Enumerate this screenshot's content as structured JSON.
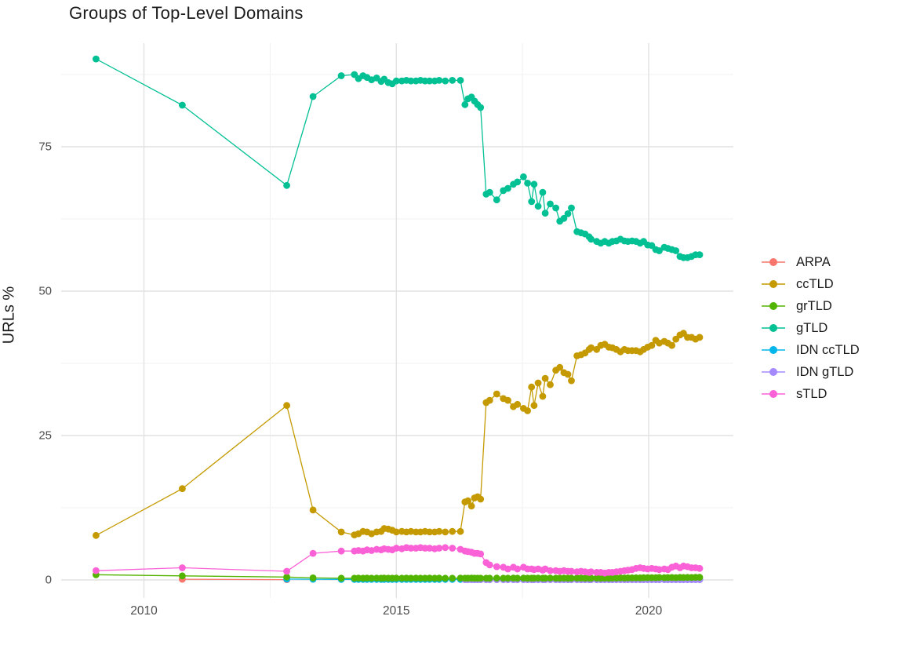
{
  "title": "Groups of Top-Level Domains",
  "chart_data": {
    "type": "line",
    "title": "Groups of Top-Level Domains",
    "xlabel": "",
    "ylabel": "URLs %",
    "x_ticks": [
      2010,
      2015,
      2020
    ],
    "x_minor": [
      2012.5,
      2017.5
    ],
    "y_ticks": [
      0,
      25,
      50,
      75
    ],
    "y_minor": [
      12.5,
      37.5,
      62.5,
      87.5
    ],
    "xlim": [
      2008.36,
      2021.68
    ],
    "ylim": [
      -3,
      93
    ],
    "grid": true,
    "legend_position": "right",
    "legend": [
      {
        "label": "ARPA",
        "color": "#F8766D"
      },
      {
        "label": "ccTLD",
        "color": "#C49A00"
      },
      {
        "label": "grTLD",
        "color": "#53B400"
      },
      {
        "label": "gTLD",
        "color": "#00C094"
      },
      {
        "label": "IDN ccTLD",
        "color": "#00B6EB"
      },
      {
        "label": "IDN gTLD",
        "color": "#A58AFF"
      },
      {
        "label": "sTLD",
        "color": "#FB61D7"
      }
    ],
    "series": [
      {
        "name": "ARPA",
        "color": "#F8766D",
        "x": [
          2010.76,
          2012.83
        ],
        "y": [
          0.12,
          0.06
        ]
      },
      {
        "name": "IDN ccTLD",
        "color": "#00B6EB",
        "x": [
          2012.83,
          2013.35,
          2013.91,
          2014.17,
          2014.25,
          2014.34,
          2014.42,
          2014.51,
          2014.61,
          2014.7,
          2014.76,
          2014.84,
          2014.92,
          2015.0,
          2015.11,
          2015.2,
          2015.29,
          2015.39,
          2015.48,
          2015.57,
          2015.66,
          2015.76,
          2015.85,
          2015.97,
          2016.11,
          2016.27,
          2016.36,
          2016.42,
          2016.49,
          2016.55,
          2016.61,
          2016.67,
          2016.78,
          2016.85,
          2016.99,
          2017.12,
          2017.21,
          2017.32,
          2017.4,
          2017.52,
          2017.6,
          2017.68,
          2017.73,
          2017.81,
          2017.9,
          2017.95,
          2018.05,
          2018.16,
          2018.24,
          2018.32,
          2018.4,
          2018.47,
          2018.58,
          2018.66,
          2018.74,
          2018.82,
          2018.86,
          2018.97,
          2019.05,
          2019.13,
          2019.21,
          2019.28,
          2019.36,
          2019.44,
          2019.52,
          2019.59,
          2019.67,
          2019.75,
          2019.83,
          2019.9,
          2019.98,
          2020.06,
          2020.14,
          2020.21,
          2020.31,
          2020.38,
          2020.46,
          2020.54,
          2020.62,
          2020.69,
          2020.77,
          2020.85,
          2020.93,
          2021.01
        ],
        "y": [
          0.15,
          0.12,
          0.1,
          0.1,
          0.1,
          0.1,
          0.1,
          0.1,
          0.1,
          0.1,
          0.1,
          0.1,
          0.1,
          0.1,
          0.1,
          0.1,
          0.1,
          0.1,
          0.1,
          0.1,
          0.1,
          0.1,
          0.1,
          0.1,
          0.1,
          0.1,
          0.1,
          0.1,
          0.1,
          0.1,
          0.1,
          0.1,
          0.1,
          0.1,
          0.1,
          0.1,
          0.1,
          0.1,
          0.1,
          0.1,
          0.1,
          0.1,
          0.1,
          0.1,
          0.1,
          0.1,
          0.1,
          0.1,
          0.1,
          0.1,
          0.1,
          0.1,
          0.1,
          0.1,
          0.1,
          0.1,
          0.1,
          0.1,
          0.1,
          0.1,
          0.1,
          0.1,
          0.1,
          0.1,
          0.1,
          0.1,
          0.1,
          0.1,
          0.1,
          0.1,
          0.1,
          0.1,
          0.1,
          0.1,
          0.1,
          0.1,
          0.1,
          0.1,
          0.1,
          0.1,
          0.1,
          0.1,
          0.1,
          0.1
        ]
      },
      {
        "name": "IDN gTLD",
        "color": "#A58AFF",
        "x": [
          2016.36,
          2016.42,
          2016.49,
          2016.55,
          2016.61,
          2016.67,
          2016.78,
          2016.85,
          2016.99,
          2017.12,
          2017.21,
          2017.32,
          2017.4,
          2017.52,
          2017.6,
          2017.68,
          2017.73,
          2017.81,
          2017.9,
          2017.95,
          2018.05,
          2018.16,
          2018.24,
          2018.32,
          2018.4,
          2018.47,
          2018.58,
          2018.66,
          2018.74,
          2018.82,
          2018.86,
          2018.97,
          2019.05,
          2019.13,
          2019.21,
          2019.28,
          2019.36,
          2019.44,
          2019.52,
          2019.59,
          2019.67,
          2019.75,
          2019.83,
          2019.9,
          2019.98,
          2020.06,
          2020.14,
          2020.21,
          2020.31,
          2020.38,
          2020.46,
          2020.54,
          2020.62,
          2020.69,
          2020.77,
          2020.85,
          2020.93,
          2021.01
        ],
        "y": [
          0.05,
          0.05,
          0.05,
          0.05,
          0.05,
          0.05,
          0.04,
          0.04,
          0.04,
          0.04,
          0.04,
          0.04,
          0.04,
          0.04,
          0.04,
          0.04,
          0.04,
          0.04,
          0.04,
          0.04,
          0.04,
          0.04,
          0.04,
          0.04,
          0.04,
          0.04,
          0.04,
          0.04,
          0.04,
          0.04,
          0.04,
          0.04,
          0.04,
          0.04,
          0.04,
          0.04,
          0.04,
          0.04,
          0.04,
          0.04,
          0.04,
          0.04,
          0.04,
          0.04,
          0.04,
          0.04,
          0.04,
          0.04,
          0.04,
          0.04,
          0.04,
          0.04,
          0.04,
          0.04,
          0.04,
          0.04,
          0.04,
          0.04
        ]
      },
      {
        "name": "ccTLD",
        "color": "#C49A00",
        "x": [
          2009.05,
          2010.76,
          2012.83,
          2013.35,
          2013.91,
          2014.17,
          2014.25,
          2014.34,
          2014.42,
          2014.51,
          2014.61,
          2014.7,
          2014.76,
          2014.84,
          2014.92,
          2015.0,
          2015.11,
          2015.2,
          2015.29,
          2015.39,
          2015.48,
          2015.57,
          2015.66,
          2015.76,
          2015.85,
          2015.97,
          2016.11,
          2016.27,
          2016.36,
          2016.42,
          2016.49,
          2016.55,
          2016.61,
          2016.67,
          2016.78,
          2016.85,
          2016.99,
          2017.12,
          2017.21,
          2017.32,
          2017.4,
          2017.52,
          2017.6,
          2017.68,
          2017.73,
          2017.81,
          2017.9,
          2017.95,
          2018.05,
          2018.16,
          2018.24,
          2018.32,
          2018.4,
          2018.47,
          2018.58,
          2018.66,
          2018.74,
          2018.82,
          2018.86,
          2018.97,
          2019.05,
          2019.13,
          2019.21,
          2019.28,
          2019.36,
          2019.44,
          2019.52,
          2019.59,
          2019.67,
          2019.75,
          2019.83,
          2019.9,
          2019.98,
          2020.06,
          2020.14,
          2020.21,
          2020.31,
          2020.38,
          2020.46,
          2020.54,
          2020.62,
          2020.69,
          2020.77,
          2020.85,
          2020.93,
          2021.01
        ],
        "y": [
          7.7,
          15.8,
          30.2,
          12.1,
          8.3,
          7.8,
          8.0,
          8.4,
          8.3,
          8.0,
          8.3,
          8.4,
          8.9,
          8.8,
          8.6,
          8.3,
          8.4,
          8.3,
          8.4,
          8.3,
          8.3,
          8.4,
          8.3,
          8.3,
          8.4,
          8.3,
          8.4,
          8.4,
          13.5,
          13.7,
          12.8,
          14.2,
          14.4,
          14.0,
          30.7,
          31.1,
          32.2,
          31.4,
          31.1,
          30.0,
          30.4,
          29.7,
          29.3,
          33.4,
          30.2,
          34.1,
          31.8,
          34.9,
          33.8,
          36.3,
          36.8,
          35.9,
          35.6,
          34.5,
          38.8,
          39.0,
          39.3,
          39.9,
          40.2,
          39.9,
          40.6,
          40.8,
          40.3,
          40.2,
          39.9,
          39.5,
          39.9,
          39.7,
          39.7,
          39.7,
          39.5,
          39.9,
          40.3,
          40.6,
          41.5,
          41.0,
          41.3,
          41.0,
          40.6,
          41.7,
          42.4,
          42.7,
          42.0,
          42.0,
          41.7,
          42.0
        ]
      },
      {
        "name": "grTLD",
        "color": "#53B400",
        "x": [
          2009.05,
          2010.76,
          2012.83,
          2013.35,
          2013.91,
          2014.17,
          2014.25,
          2014.34,
          2014.42,
          2014.51,
          2014.61,
          2014.7,
          2014.76,
          2014.84,
          2014.92,
          2015.0,
          2015.11,
          2015.2,
          2015.29,
          2015.39,
          2015.48,
          2015.57,
          2015.66,
          2015.76,
          2015.85,
          2015.97,
          2016.11,
          2016.27,
          2016.36,
          2016.42,
          2016.49,
          2016.55,
          2016.61,
          2016.67,
          2016.78,
          2016.85,
          2016.99,
          2017.12,
          2017.21,
          2017.32,
          2017.4,
          2017.52,
          2017.6,
          2017.68,
          2017.73,
          2017.81,
          2017.9,
          2017.95,
          2018.05,
          2018.16,
          2018.24,
          2018.32,
          2018.4,
          2018.47,
          2018.58,
          2018.66,
          2018.74,
          2018.82,
          2018.86,
          2018.97,
          2019.05,
          2019.13,
          2019.21,
          2019.28,
          2019.36,
          2019.44,
          2019.52,
          2019.59,
          2019.67,
          2019.75,
          2019.83,
          2019.9,
          2019.98,
          2020.06,
          2020.14,
          2020.21,
          2020.31,
          2020.38,
          2020.46,
          2020.54,
          2020.62,
          2020.69,
          2020.77,
          2020.85,
          2020.93,
          2021.01
        ],
        "y": [
          0.9,
          0.7,
          0.5,
          0.35,
          0.3,
          0.3,
          0.32,
          0.3,
          0.33,
          0.3,
          0.31,
          0.3,
          0.32,
          0.3,
          0.3,
          0.31,
          0.3,
          0.32,
          0.3,
          0.31,
          0.3,
          0.3,
          0.32,
          0.3,
          0.31,
          0.3,
          0.3,
          0.31,
          0.3,
          0.3,
          0.31,
          0.3,
          0.3,
          0.3,
          0.3,
          0.3,
          0.31,
          0.3,
          0.3,
          0.32,
          0.3,
          0.31,
          0.3,
          0.3,
          0.3,
          0.31,
          0.3,
          0.3,
          0.32,
          0.3,
          0.3,
          0.31,
          0.3,
          0.3,
          0.33,
          0.32,
          0.3,
          0.31,
          0.3,
          0.32,
          0.3,
          0.31,
          0.3,
          0.32,
          0.33,
          0.35,
          0.34,
          0.36,
          0.35,
          0.37,
          0.36,
          0.38,
          0.4,
          0.38,
          0.4,
          0.42,
          0.4,
          0.41,
          0.42,
          0.4,
          0.43,
          0.42,
          0.44,
          0.42,
          0.45,
          0.45
        ]
      },
      {
        "name": "gTLD",
        "color": "#00C094",
        "x": [
          2009.05,
          2010.76,
          2012.83,
          2013.35,
          2013.91,
          2014.17,
          2014.25,
          2014.34,
          2014.42,
          2014.51,
          2014.61,
          2014.7,
          2014.76,
          2014.84,
          2014.92,
          2015.0,
          2015.11,
          2015.2,
          2015.29,
          2015.39,
          2015.48,
          2015.57,
          2015.66,
          2015.76,
          2015.85,
          2015.97,
          2016.11,
          2016.27,
          2016.36,
          2016.42,
          2016.49,
          2016.55,
          2016.61,
          2016.67,
          2016.78,
          2016.85,
          2016.99,
          2017.12,
          2017.21,
          2017.32,
          2017.4,
          2017.52,
          2017.6,
          2017.68,
          2017.73,
          2017.81,
          2017.9,
          2017.95,
          2018.05,
          2018.16,
          2018.24,
          2018.32,
          2018.4,
          2018.47,
          2018.58,
          2018.66,
          2018.74,
          2018.82,
          2018.86,
          2018.97,
          2019.05,
          2019.13,
          2019.21,
          2019.28,
          2019.36,
          2019.44,
          2019.52,
          2019.59,
          2019.67,
          2019.75,
          2019.83,
          2019.9,
          2019.98,
          2020.06,
          2020.14,
          2020.21,
          2020.31,
          2020.38,
          2020.46,
          2020.54,
          2020.62,
          2020.69,
          2020.77,
          2020.85,
          2020.93,
          2021.01
        ],
        "y": [
          90.2,
          82.2,
          68.3,
          83.7,
          87.3,
          87.5,
          86.8,
          87.3,
          87.0,
          86.6,
          86.9,
          86.3,
          86.7,
          86.1,
          85.9,
          86.4,
          86.4,
          86.5,
          86.4,
          86.4,
          86.5,
          86.4,
          86.4,
          86.4,
          86.5,
          86.4,
          86.5,
          86.5,
          82.3,
          83.3,
          83.6,
          82.9,
          82.3,
          81.8,
          66.8,
          67.1,
          65.8,
          67.4,
          67.8,
          68.5,
          68.9,
          69.8,
          68.7,
          65.5,
          68.5,
          64.7,
          67.1,
          63.5,
          65.1,
          64.4,
          62.1,
          62.6,
          63.4,
          64.4,
          60.3,
          60.1,
          59.9,
          59.4,
          59.0,
          58.6,
          58.3,
          58.6,
          58.3,
          58.6,
          58.7,
          59.0,
          58.7,
          58.6,
          58.7,
          58.6,
          58.3,
          58.6,
          58.0,
          57.9,
          57.2,
          57.0,
          57.6,
          57.4,
          57.2,
          57.0,
          56.0,
          55.8,
          55.8,
          56.0,
          56.3,
          56.3
        ]
      },
      {
        "name": "sTLD",
        "color": "#FB61D7",
        "x": [
          2009.05,
          2010.76,
          2012.83,
          2013.35,
          2013.91,
          2014.17,
          2014.25,
          2014.34,
          2014.42,
          2014.51,
          2014.61,
          2014.7,
          2014.76,
          2014.84,
          2014.92,
          2015.0,
          2015.11,
          2015.2,
          2015.29,
          2015.39,
          2015.48,
          2015.57,
          2015.66,
          2015.76,
          2015.85,
          2015.97,
          2016.11,
          2016.27,
          2016.36,
          2016.42,
          2016.49,
          2016.55,
          2016.61,
          2016.67,
          2016.78,
          2016.85,
          2016.99,
          2017.12,
          2017.21,
          2017.32,
          2017.4,
          2017.52,
          2017.6,
          2017.68,
          2017.73,
          2017.81,
          2017.9,
          2017.95,
          2018.05,
          2018.16,
          2018.24,
          2018.32,
          2018.4,
          2018.47,
          2018.58,
          2018.66,
          2018.74,
          2018.82,
          2018.86,
          2018.97,
          2019.05,
          2019.13,
          2019.21,
          2019.28,
          2019.36,
          2019.44,
          2019.52,
          2019.59,
          2019.67,
          2019.75,
          2019.83,
          2019.9,
          2019.98,
          2020.06,
          2020.14,
          2020.21,
          2020.31,
          2020.38,
          2020.46,
          2020.54,
          2020.62,
          2020.69,
          2020.77,
          2020.85,
          2020.93,
          2021.01
        ],
        "y": [
          1.6,
          2.1,
          1.5,
          4.6,
          5.0,
          5.0,
          5.1,
          5.0,
          5.2,
          5.1,
          5.3,
          5.2,
          5.4,
          5.3,
          5.2,
          5.5,
          5.4,
          5.6,
          5.5,
          5.5,
          5.6,
          5.5,
          5.5,
          5.4,
          5.5,
          5.6,
          5.5,
          5.3,
          5.0,
          4.9,
          4.8,
          4.6,
          4.6,
          4.5,
          3.0,
          2.6,
          2.3,
          2.2,
          1.9,
          2.2,
          1.9,
          2.2,
          1.9,
          1.9,
          1.8,
          1.9,
          1.7,
          1.9,
          1.6,
          1.6,
          1.5,
          1.6,
          1.5,
          1.5,
          1.4,
          1.5,
          1.4,
          1.3,
          1.4,
          1.3,
          1.3,
          1.2,
          1.3,
          1.3,
          1.4,
          1.5,
          1.6,
          1.7,
          1.8,
          2.0,
          2.1,
          2.0,
          1.9,
          2.0,
          1.9,
          1.8,
          1.9,
          1.8,
          2.2,
          2.4,
          2.1,
          2.4,
          2.3,
          2.1,
          2.1,
          2.0
        ]
      }
    ]
  }
}
